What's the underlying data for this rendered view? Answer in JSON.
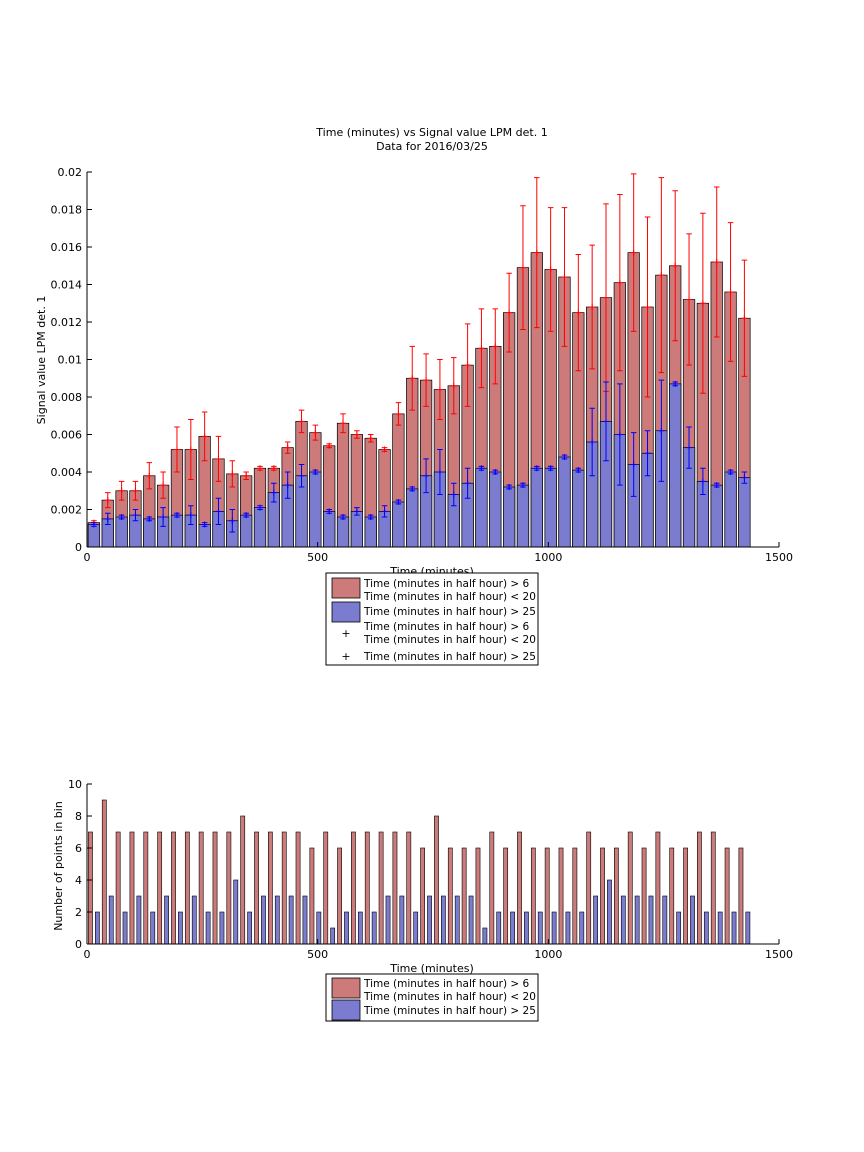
{
  "figure": {
    "background": "#ffffff"
  },
  "chart_data": [
    {
      "type": "bar",
      "title": "Time (minutes) vs Signal value LPM det. 1",
      "subtitle": "Data for 2016/03/25",
      "xlabel": "Time (minutes)",
      "ylabel": "Signal value LPM det. 1",
      "xlim": [
        0,
        1500
      ],
      "ylim": [
        0,
        0.02
      ],
      "xticks": [
        0,
        500,
        1000,
        1500
      ],
      "xtick_labels": [
        "0",
        "500",
        "1000",
        "1500"
      ],
      "yticks": [
        0,
        0.002,
        0.004,
        0.006,
        0.008,
        0.01,
        0.012,
        0.014,
        0.016,
        0.018,
        0.02
      ],
      "ytick_labels": [
        "0",
        "0.002",
        "0.004",
        "0.006",
        "0.008",
        "0.01",
        "0.012",
        "0.014",
        "0.016",
        "0.018",
        "0.02"
      ],
      "grid": false,
      "legend_position": "below plot",
      "x": [
        15,
        45,
        75,
        105,
        135,
        165,
        195,
        225,
        255,
        285,
        315,
        345,
        375,
        405,
        435,
        465,
        495,
        525,
        555,
        585,
        615,
        645,
        675,
        705,
        735,
        765,
        795,
        825,
        855,
        885,
        915,
        945,
        975,
        1005,
        1035,
        1065,
        1095,
        1125,
        1155,
        1185,
        1215,
        1245,
        1275,
        1305,
        1335,
        1365,
        1395,
        1425
      ],
      "series": [
        {
          "name": "Time (minutes in half hour) > 6\nTime (minutes in half hour) < 20",
          "kind": "bar",
          "color": "#cc7a7a",
          "values": [
            0.0013,
            0.0025,
            0.003,
            0.003,
            0.0038,
            0.0033,
            0.0052,
            0.0052,
            0.0059,
            0.0047,
            0.0039,
            0.0038,
            0.0042,
            0.0042,
            0.0053,
            0.0067,
            0.0061,
            0.0054,
            0.0066,
            0.006,
            0.0058,
            0.0052,
            0.0071,
            0.009,
            0.0089,
            0.0084,
            0.0086,
            0.0097,
            0.0106,
            0.0107,
            0.0125,
            0.0149,
            0.0157,
            0.0148,
            0.0144,
            0.0125,
            0.0128,
            0.0133,
            0.0141,
            0.0157,
            0.0128,
            0.0145,
            0.015,
            0.0132,
            0.013,
            0.0152,
            0.0136,
            0.0122
          ],
          "errors": [
            0.0001,
            0.0004,
            0.0005,
            0.0005,
            0.0007,
            0.0007,
            0.0012,
            0.0016,
            0.0013,
            0.0012,
            0.0007,
            0.0002,
            0.0001,
            0.0001,
            0.0003,
            0.0006,
            0.0004,
            0.0001,
            0.0005,
            0.0002,
            0.0002,
            0.0001,
            0.0006,
            0.0017,
            0.0014,
            0.0016,
            0.0015,
            0.0022,
            0.0021,
            0.002,
            0.0021,
            0.0033,
            0.004,
            0.0033,
            0.0037,
            0.0031,
            0.0033,
            0.005,
            0.0047,
            0.0042,
            0.0048,
            0.0052,
            0.004,
            0.0035,
            0.0048,
            0.004,
            0.0037,
            0.0031
          ]
        },
        {
          "name": "Time (minutes in half hour) > 25",
          "kind": "bar",
          "color": "#7b7bcf",
          "values": [
            0.0012,
            0.0015,
            0.0016,
            0.0017,
            0.0015,
            0.0016,
            0.0017,
            0.0017,
            0.0012,
            0.0019,
            0.0014,
            0.0017,
            0.0021,
            0.0029,
            0.0033,
            0.0038,
            0.004,
            0.0019,
            0.0016,
            0.0019,
            0.0016,
            0.0019,
            0.0024,
            0.0031,
            0.0038,
            0.004,
            0.0028,
            0.0034,
            0.0042,
            0.004,
            0.0032,
            0.0033,
            0.0042,
            0.0042,
            0.0048,
            0.0041,
            0.0056,
            0.0067,
            0.006,
            0.0044,
            0.005,
            0.0062,
            0.0087,
            0.0053,
            0.0035,
            0.0033,
            0.004,
            0.0037
          ],
          "errors": [
            0.0001,
            0.0003,
            0.0001,
            0.0003,
            0.0001,
            0.0005,
            0.0001,
            0.0005,
            0.0001,
            0.0007,
            0.0006,
            0.0001,
            0.0001,
            0.0005,
            0.0007,
            0.0006,
            0.0001,
            0.0001,
            0.0001,
            0.0002,
            0.0001,
            0.0003,
            0.0001,
            0.0001,
            0.0009,
            0.0012,
            0.0006,
            0.0008,
            0.0001,
            0.0001,
            0.0001,
            0.0001,
            0.0001,
            0.0001,
            0.0001,
            0.0001,
            0.0018,
            0.0021,
            0.0027,
            0.0017,
            0.0012,
            0.0027,
            0.0001,
            0.0011,
            0.0007,
            0.0001,
            0.0001,
            0.0003
          ]
        }
      ],
      "legend_entries": [
        {
          "label": "Time (minutes in half hour) > 6\nTime (minutes in half hour) < 20",
          "marker": "patch",
          "color": "#cc7a7a"
        },
        {
          "label": "Time (minutes in half hour) > 25",
          "marker": "patch",
          "color": "#7b7bcf"
        },
        {
          "label": "Time (minutes in half hour) > 6\nTime (minutes in half hour) < 20",
          "marker": "+",
          "color": "#ff0000"
        },
        {
          "label": "Time (minutes in half hour) > 25",
          "marker": "+",
          "color": "#0000ff"
        }
      ]
    },
    {
      "type": "bar",
      "title": "",
      "xlabel": "Time (minutes)",
      "ylabel": "Number of points in bin",
      "xlim": [
        0,
        1500
      ],
      "ylim": [
        0,
        10
      ],
      "xticks": [
        0,
        500,
        1000,
        1500
      ],
      "xtick_labels": [
        "0",
        "500",
        "1000",
        "1500"
      ],
      "yticks": [
        0,
        2,
        4,
        6,
        8,
        10
      ],
      "ytick_labels": [
        "0",
        "2",
        "4",
        "6",
        "8",
        "10"
      ],
      "grid": false,
      "legend_position": "below plot",
      "x": [
        15,
        45,
        75,
        105,
        135,
        165,
        195,
        225,
        255,
        285,
        315,
        345,
        375,
        405,
        435,
        465,
        495,
        525,
        555,
        585,
        615,
        645,
        675,
        705,
        735,
        765,
        795,
        825,
        855,
        885,
        915,
        945,
        975,
        1005,
        1035,
        1065,
        1095,
        1125,
        1155,
        1185,
        1215,
        1245,
        1275,
        1305,
        1335,
        1365,
        1395,
        1425
      ],
      "series": [
        {
          "name": "Time (minutes in half hour) > 6\nTime (minutes in half hour) < 20",
          "kind": "bar",
          "color": "#cc7a7a",
          "values": [
            7,
            9,
            7,
            7,
            7,
            7,
            7,
            7,
            7,
            7,
            7,
            8,
            7,
            7,
            7,
            7,
            6,
            7,
            6,
            7,
            7,
            7,
            7,
            7,
            6,
            8,
            6,
            6,
            6,
            7,
            6,
            7,
            6,
            6,
            6,
            6,
            7,
            6,
            6,
            7,
            6,
            7,
            6,
            6,
            7,
            7,
            6,
            6
          ]
        },
        {
          "name": "Time (minutes in half hour) > 25",
          "kind": "bar",
          "color": "#7b7bcf",
          "values": [
            2,
            3,
            2,
            3,
            2,
            3,
            2,
            3,
            2,
            2,
            4,
            2,
            3,
            3,
            3,
            3,
            2,
            1,
            2,
            2,
            2,
            3,
            3,
            2,
            3,
            3,
            3,
            3,
            1,
            2,
            2,
            2,
            2,
            2,
            2,
            2,
            3,
            4,
            3,
            3,
            3,
            3,
            2,
            3,
            2,
            2,
            2,
            2
          ]
        }
      ],
      "legend_entries": [
        {
          "label": "Time (minutes in half hour) > 6\nTime (minutes in half hour) < 20",
          "marker": "patch",
          "color": "#cc7a7a"
        },
        {
          "label": "Time (minutes in half hour) > 25",
          "marker": "patch",
          "color": "#7b7bcf"
        }
      ]
    }
  ]
}
